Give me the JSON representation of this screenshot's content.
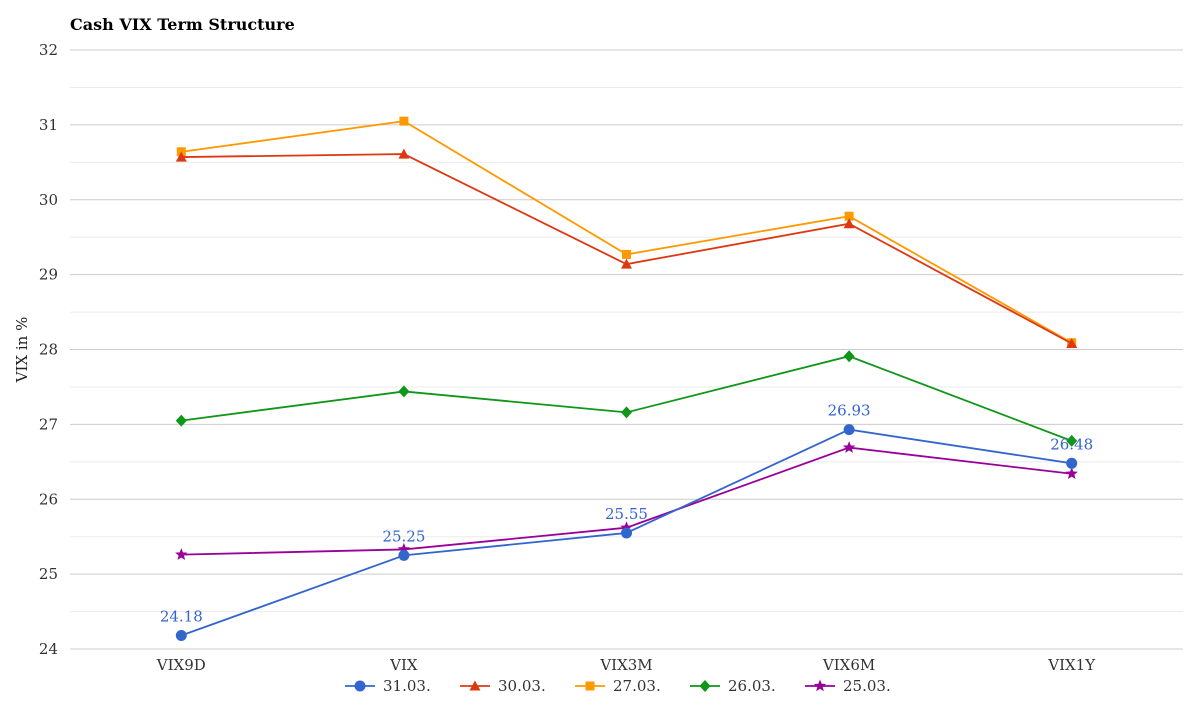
{
  "chart_data": {
    "type": "line",
    "title": "Cash VIX Term Structure",
    "xlabel": "",
    "ylabel": "VIX in %",
    "categories": [
      "VIX9D",
      "VIX",
      "VIX3M",
      "VIX6M",
      "VIX1Y"
    ],
    "ylim": [
      24,
      32
    ],
    "yticks": [
      24,
      25,
      26,
      27,
      28,
      29,
      30,
      31,
      32
    ],
    "grid": true,
    "legend_position": "bottom",
    "series": [
      {
        "name": "31.03.",
        "values": [
          24.18,
          25.25,
          25.55,
          26.93,
          26.48
        ],
        "color": "#3366cc",
        "marker": "circle",
        "data_labels": [
          "24.18",
          "25.25",
          "25.55",
          "26.93",
          "26.48"
        ]
      },
      {
        "name": "30.03.",
        "values": [
          30.57,
          30.61,
          29.14,
          29.68,
          28.08
        ],
        "color": "#dc3912",
        "marker": "triangle"
      },
      {
        "name": "27.03.",
        "values": [
          30.64,
          31.05,
          29.27,
          29.78,
          28.09
        ],
        "color": "#ff9900",
        "marker": "square"
      },
      {
        "name": "26.03.",
        "values": [
          27.05,
          27.44,
          27.16,
          27.91,
          26.78
        ],
        "color": "#109618",
        "marker": "diamond"
      },
      {
        "name": "25.03.",
        "values": [
          25.26,
          25.33,
          25.62,
          26.69,
          26.34
        ],
        "color": "#990099",
        "marker": "star"
      }
    ]
  }
}
